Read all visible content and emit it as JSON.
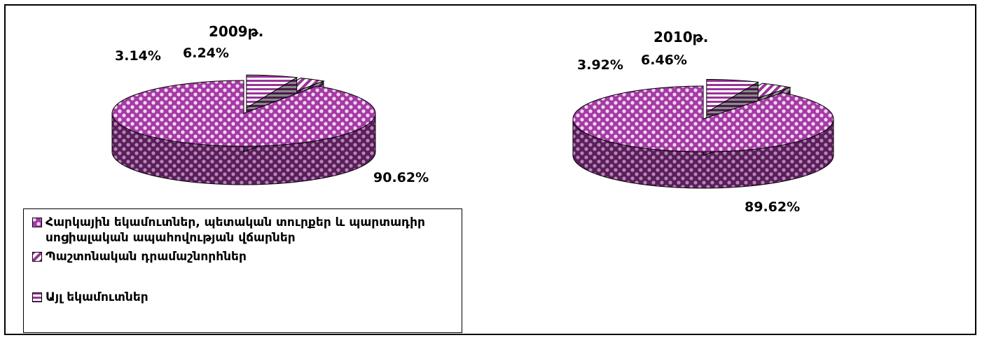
{
  "chart_data": [
    {
      "type": "pie",
      "title": "2009թ.",
      "categories": [
        "Հարկային եկամուտներ, պետական տուրքեր և պարտադիր սոցիալական ապահովության վճարներ",
        "Պաշտոնական դրամաշնորհներ",
        "Այլ եկամուտներ"
      ],
      "values": [
        90.62,
        3.14,
        6.24
      ],
      "labels": [
        "90.62%",
        "3.14%",
        "6.24%"
      ]
    },
    {
      "type": "pie",
      "title": "2010թ.",
      "categories": [
        "Հարկային եկամուտներ, պետական տուրքեր և պարտադիր սոցիալական ապահովության վճարներ",
        "Պաշտոնական դրամաշնորհներ",
        "Այլ եկամուտներ"
      ],
      "values": [
        89.62,
        3.92,
        6.46
      ],
      "labels": [
        "89.62%",
        "3.92%",
        "6.46%"
      ]
    }
  ],
  "legend": {
    "items": [
      {
        "label": "Հարկային եկամուտներ, պետական տուրքեր և պարտադիր սոցիալական ապահովության վճարներ",
        "pattern": "dots"
      },
      {
        "label": "Պաշտոնական դրամաշնորհներ",
        "pattern": "diagonal"
      },
      {
        "label": "Այլ եկամուտներ",
        "pattern": "horizontal"
      }
    ]
  },
  "colors": {
    "accent": "#993399",
    "dark": "#5a1f5a",
    "white": "#ffffff"
  }
}
